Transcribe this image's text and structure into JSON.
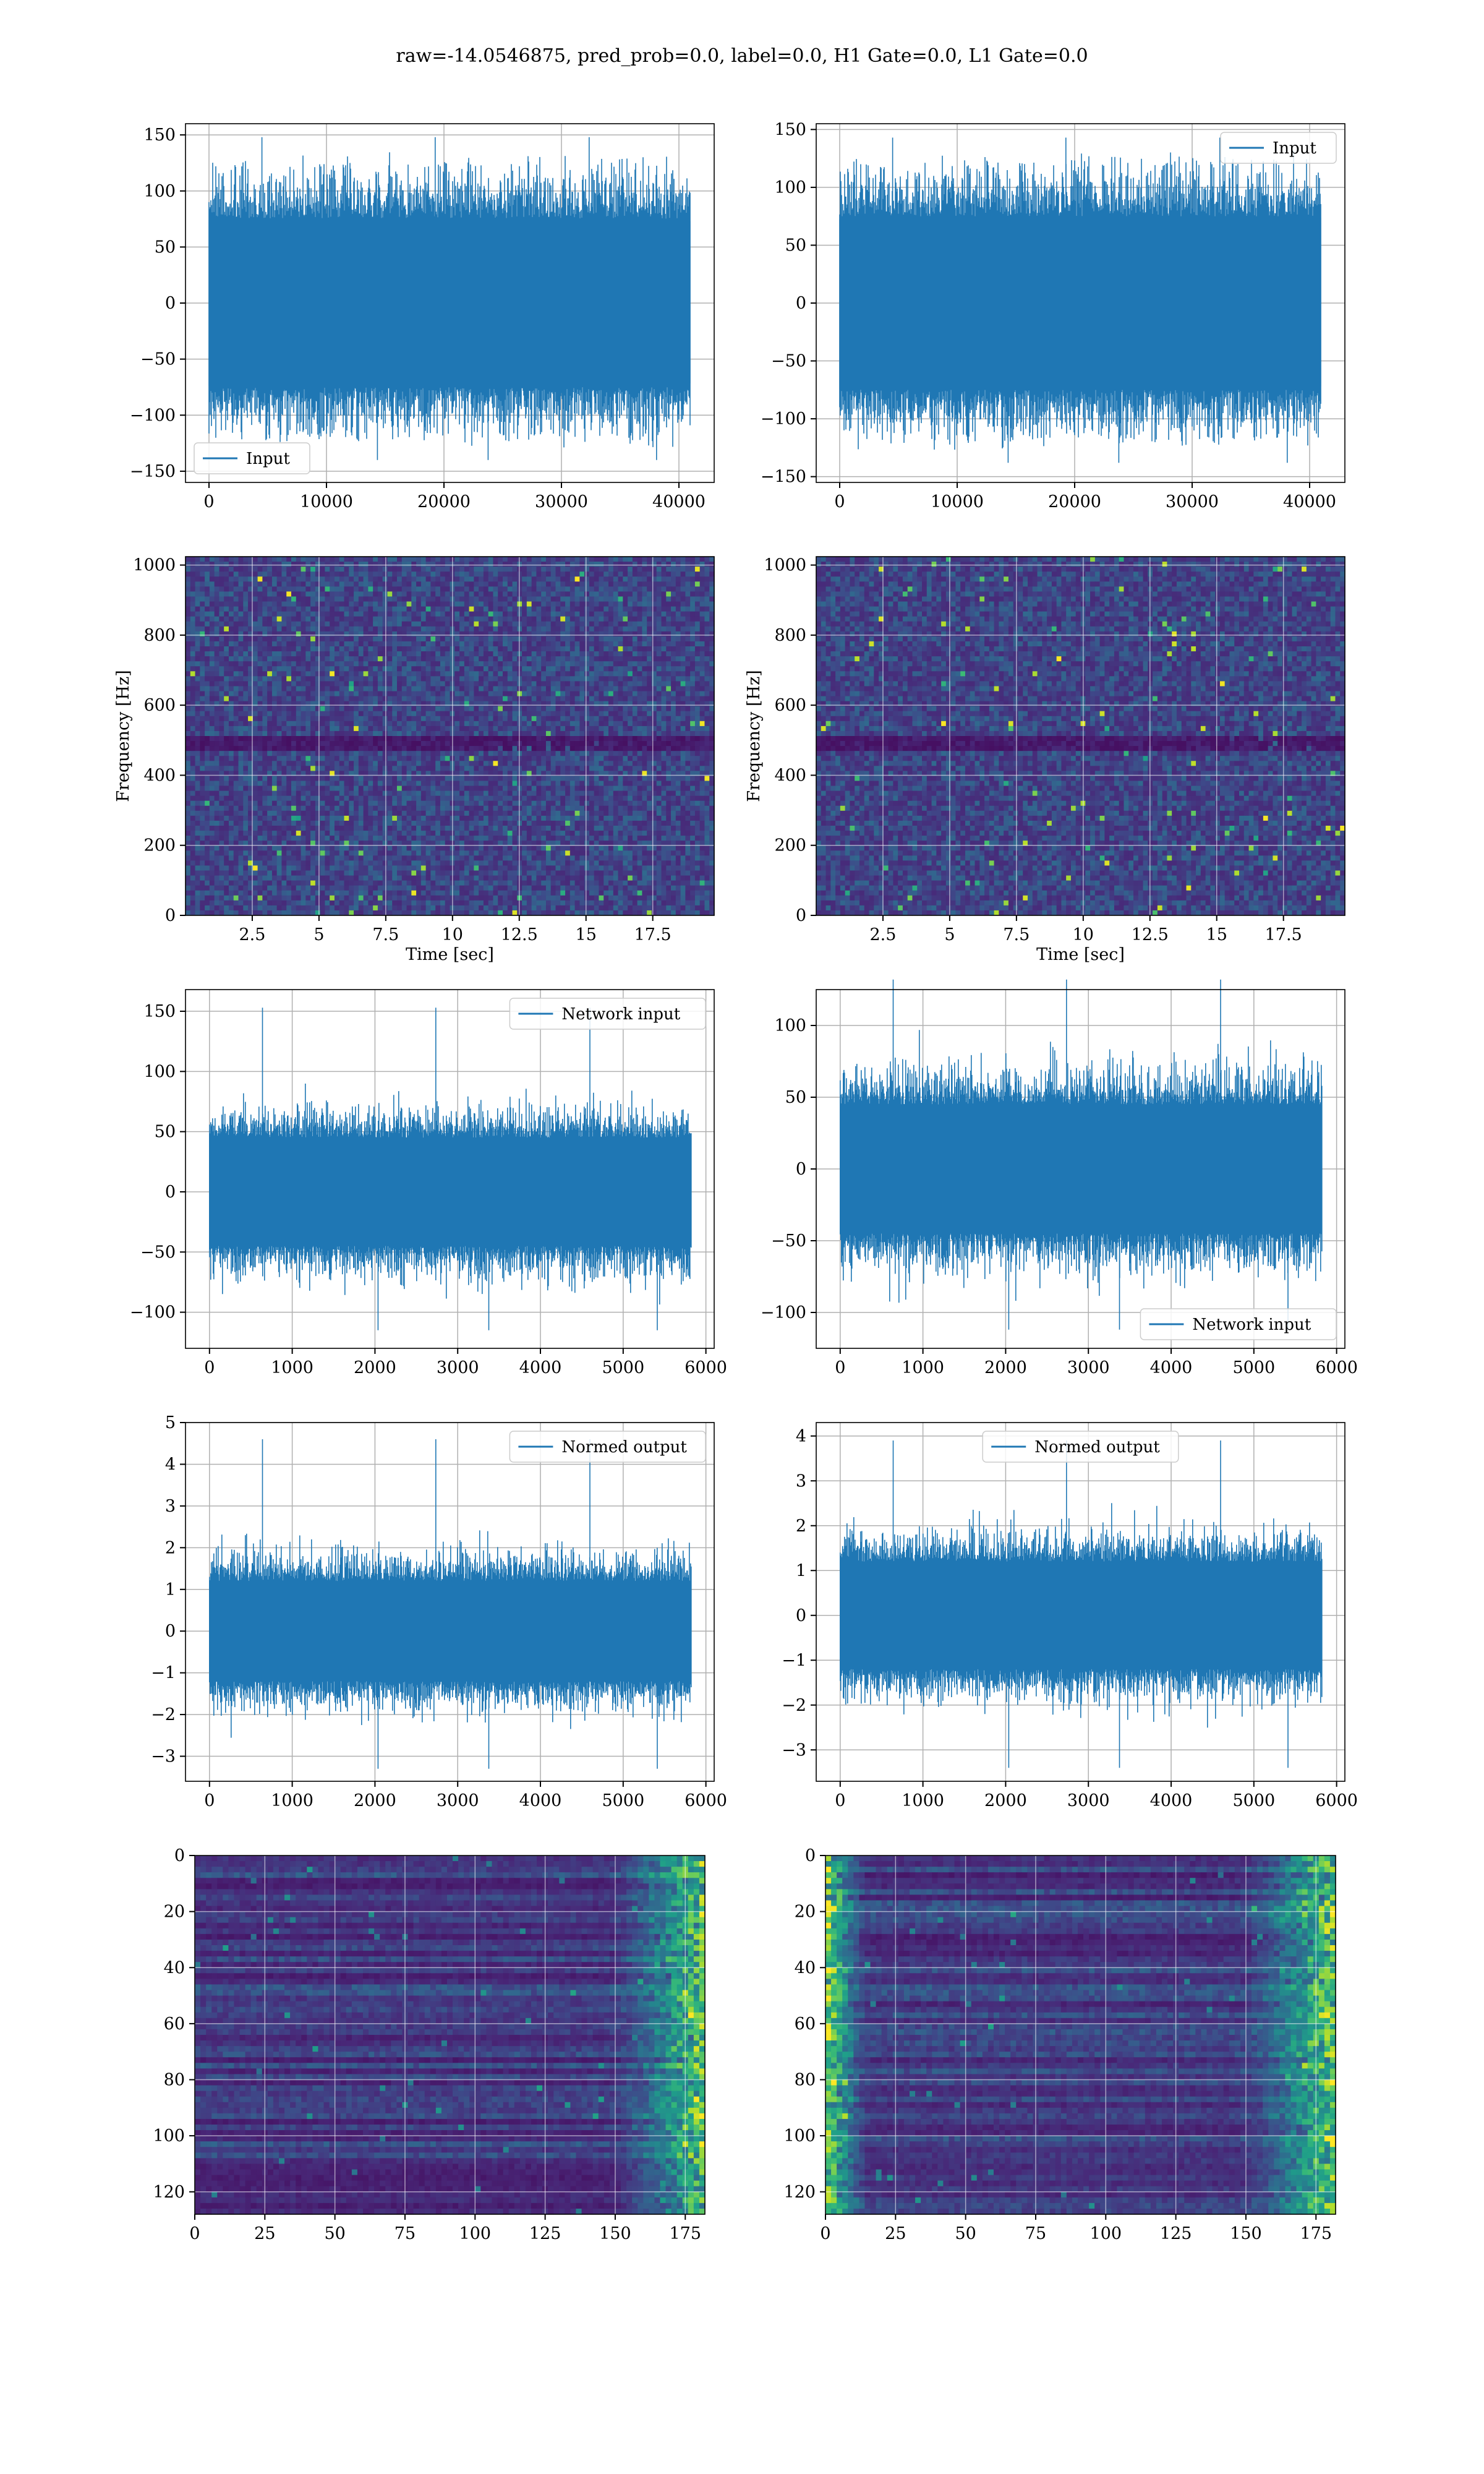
{
  "figure": {
    "suptitle": "raw=-14.0546875, pred_prob=0.0, label=0.0, H1 Gate=0.0, L1 Gate=0.0"
  },
  "colors": {
    "line": "#1f77b4",
    "grid": "#b0b0b0",
    "spine": "#000000"
  },
  "chart_data": [
    {
      "id": "input-h1",
      "type": "line",
      "series": [
        {
          "name": "Input"
        }
      ],
      "legend_loc": "lower-left",
      "xlim": [
        -2000,
        43000
      ],
      "ylim": [
        -160,
        160
      ],
      "xticks": [
        0,
        10000,
        20000,
        30000,
        40000
      ],
      "yticks": [
        -150,
        -100,
        -50,
        0,
        50,
        100,
        150
      ],
      "xlabel": "",
      "ylabel": "",
      "signal": {
        "x_start": 0,
        "x_end": 40960,
        "core_min": -75,
        "core_max": 75,
        "spike_min": -140,
        "spike_max": 148
      }
    },
    {
      "id": "input-l1",
      "type": "line",
      "series": [
        {
          "name": "Input"
        }
      ],
      "legend_loc": "upper-right",
      "xlim": [
        -2000,
        43000
      ],
      "ylim": [
        -155,
        155
      ],
      "xticks": [
        0,
        10000,
        20000,
        30000,
        40000
      ],
      "yticks": [
        -150,
        -100,
        -50,
        0,
        50,
        100,
        150
      ],
      "xlabel": "",
      "ylabel": "",
      "signal": {
        "x_start": 0,
        "x_end": 40960,
        "core_min": -75,
        "core_max": 75,
        "spike_min": -138,
        "spike_max": 143
      }
    },
    {
      "id": "spectrogram-h1",
      "type": "heatmap",
      "xlim": [
        0,
        19.8
      ],
      "ylim": [
        0,
        1024
      ],
      "xticks": [
        2.5,
        5.0,
        7.5,
        10.0,
        12.5,
        15.0,
        17.5
      ],
      "yticks": [
        0,
        200,
        400,
        600,
        800,
        1000
      ],
      "xlabel": "Time [sec]",
      "ylabel": "Frequency [Hz]",
      "colormap": "viridis",
      "band_hz": 500
    },
    {
      "id": "spectrogram-l1",
      "type": "heatmap",
      "xlim": [
        0,
        19.8
      ],
      "ylim": [
        0,
        1024
      ],
      "xticks": [
        2.5,
        5.0,
        7.5,
        10.0,
        12.5,
        15.0,
        17.5
      ],
      "yticks": [
        0,
        200,
        400,
        600,
        800,
        1000
      ],
      "xlabel": "Time [sec]",
      "ylabel": "Frequency [Hz]",
      "colormap": "viridis",
      "band_hz": 500
    },
    {
      "id": "network-input-h1",
      "type": "line",
      "series": [
        {
          "name": "Network input"
        }
      ],
      "legend_loc": "upper-right",
      "xlim": [
        -290,
        6100
      ],
      "ylim": [
        -130,
        168
      ],
      "xticks": [
        0,
        1000,
        2000,
        3000,
        4000,
        5000,
        6000
      ],
      "yticks": [
        -100,
        -50,
        0,
        50,
        100,
        150
      ],
      "xlabel": "",
      "ylabel": "",
      "signal": {
        "x_start": 0,
        "x_end": 5820,
        "core_min": -45,
        "core_max": 45,
        "spike_min": -115,
        "spike_max": 153
      }
    },
    {
      "id": "network-input-l1",
      "type": "line",
      "series": [
        {
          "name": "Network input"
        }
      ],
      "legend_loc": "lower-right",
      "xlim": [
        -290,
        6100
      ],
      "ylim": [
        -125,
        125
      ],
      "xticks": [
        0,
        1000,
        2000,
        3000,
        4000,
        5000,
        6000
      ],
      "yticks": [
        -100,
        -50,
        0,
        50,
        100
      ],
      "xlabel": "",
      "ylabel": "",
      "signal": {
        "x_start": 0,
        "x_end": 5820,
        "core_min": -45,
        "core_max": 45,
        "spike_min": -112,
        "spike_max": 132
      }
    },
    {
      "id": "normed-output-h1",
      "type": "line",
      "series": [
        {
          "name": "Normed output"
        }
      ],
      "legend_loc": "upper-right",
      "xlim": [
        -290,
        6100
      ],
      "ylim": [
        -3.6,
        5.0
      ],
      "xticks": [
        0,
        1000,
        2000,
        3000,
        4000,
        5000,
        6000
      ],
      "yticks": [
        -3,
        -2,
        -1,
        0,
        1,
        2,
        3,
        4,
        5
      ],
      "xlabel": "",
      "ylabel": "",
      "signal": {
        "x_start": 0,
        "x_end": 5820,
        "core_min": -1.2,
        "core_max": 1.2,
        "spike_min": -3.3,
        "spike_max": 4.6
      }
    },
    {
      "id": "normed-output-l1",
      "type": "line",
      "series": [
        {
          "name": "Normed output"
        }
      ],
      "legend_loc": "upper-center",
      "xlim": [
        -290,
        6100
      ],
      "ylim": [
        -3.7,
        4.3
      ],
      "xticks": [
        0,
        1000,
        2000,
        3000,
        4000,
        5000,
        6000
      ],
      "yticks": [
        -3,
        -2,
        -1,
        0,
        1,
        2,
        3,
        4
      ],
      "xlabel": "",
      "ylabel": "",
      "signal": {
        "x_start": 0,
        "x_end": 5820,
        "core_min": -1.2,
        "core_max": 1.2,
        "spike_min": -3.4,
        "spike_max": 3.9
      }
    },
    {
      "id": "feature-map-h1",
      "type": "heatmap",
      "xlim": [
        0,
        182
      ],
      "ylim": [
        128,
        0
      ],
      "xticks": [
        0,
        25,
        50,
        75,
        100,
        125,
        150,
        175
      ],
      "yticks": [
        0,
        20,
        40,
        60,
        80,
        100,
        120
      ],
      "xlabel": "",
      "ylabel": "",
      "colormap": "viridis",
      "bright_edge": "right"
    },
    {
      "id": "feature-map-l1",
      "type": "heatmap",
      "xlim": [
        0,
        182
      ],
      "ylim": [
        128,
        0
      ],
      "xticks": [
        0,
        25,
        50,
        75,
        100,
        125,
        150,
        175
      ],
      "yticks": [
        0,
        20,
        40,
        60,
        80,
        100,
        120
      ],
      "xlabel": "",
      "ylabel": "",
      "colormap": "viridis",
      "bright_edge": "both"
    }
  ]
}
